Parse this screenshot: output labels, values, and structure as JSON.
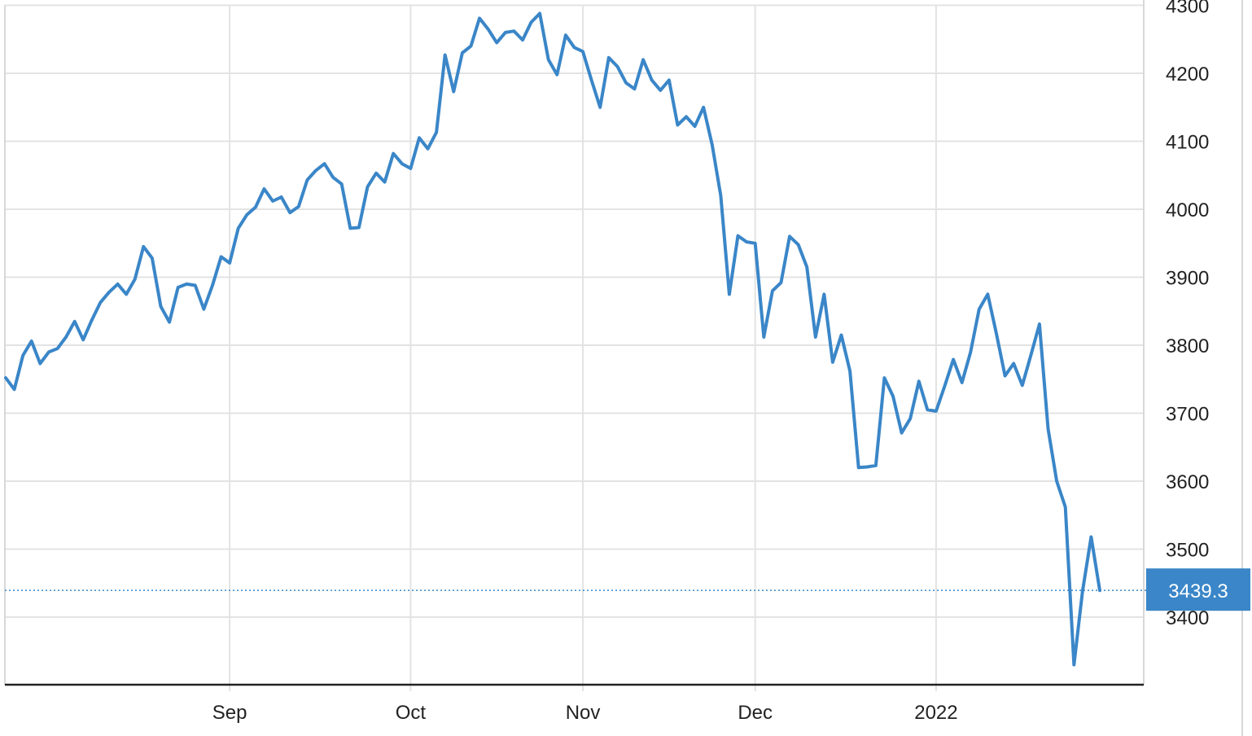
{
  "chart_data": {
    "type": "line",
    "title": "",
    "xlabel": "",
    "ylabel": "",
    "x_tick_labels": [
      "Sep",
      "Oct",
      "Nov",
      "Dec",
      "2022"
    ],
    "x_tick_indices": [
      26,
      47,
      67,
      87,
      108
    ],
    "y_ticks": [
      3400,
      3500,
      3600,
      3700,
      3800,
      3900,
      4000,
      4100,
      4200,
      4300
    ],
    "y_tick_labels": [
      "3400",
      "3500",
      "3600",
      "3700",
      "3800",
      "3900",
      "4000",
      "4100",
      "4200",
      "4300"
    ],
    "ylim": [
      3320,
      4305
    ],
    "grid": true,
    "series": [
      {
        "name": "",
        "color": "#3a86c8",
        "values": [
          3752,
          3735,
          3785,
          3806,
          3773,
          3790,
          3795,
          3812,
          3835,
          3808,
          3837,
          3863,
          3878,
          3890,
          3875,
          3897,
          3945,
          3928,
          3857,
          3834,
          3885,
          3890,
          3888,
          3853,
          3888,
          3930,
          3921,
          3972,
          3992,
          4003,
          4030,
          4012,
          4018,
          3995,
          4004,
          4043,
          4057,
          4067,
          4047,
          4037,
          3972,
          3973,
          4033,
          4053,
          4040,
          4082,
          4067,
          4060,
          4105,
          4089,
          4113,
          4227,
          4173,
          4230,
          4240,
          4281,
          4265,
          4245,
          4260,
          4262,
          4249,
          4275,
          4288,
          4220,
          4198,
          4256,
          4238,
          4232,
          4190,
          4150,
          4223,
          4210,
          4186,
          4177,
          4220,
          4190,
          4175,
          4190,
          4124,
          4136,
          4122,
          4150,
          4095,
          4020,
          3875,
          3961,
          3952,
          3950,
          3812,
          3880,
          3892,
          3960,
          3948,
          3915,
          3812,
          3875,
          3775,
          3815,
          3762,
          3620,
          3621,
          3623,
          3752,
          3725,
          3671,
          3692,
          3747,
          3705,
          3703,
          3740,
          3779,
          3745,
          3790,
          3853,
          3875,
          3817,
          3755,
          3773,
          3741,
          3785,
          3831,
          3677,
          3600,
          3562,
          3330,
          3438,
          3518,
          3439.3
        ]
      }
    ],
    "last_value": 3439.3,
    "last_value_label": "3439.3",
    "last_value_color": "#3a86c8"
  }
}
